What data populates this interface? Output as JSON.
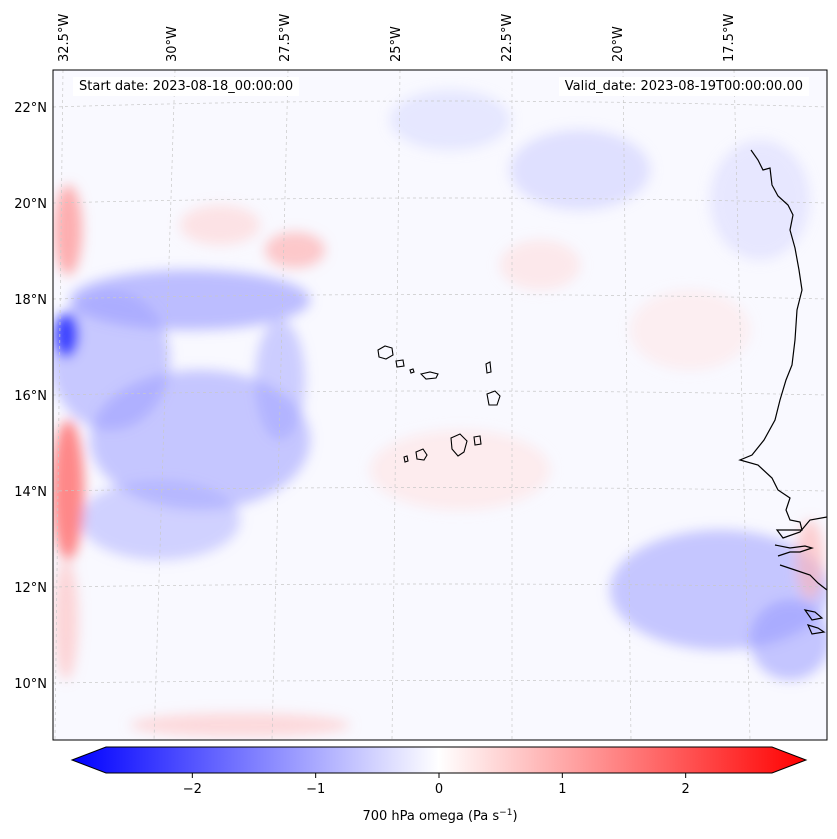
{
  "map": {
    "start_date": "Start date: 2023-08-18_00:00:00",
    "valid_date": "Valid_date: 2023-08-19T00:00:00.00",
    "longitude_labels": [
      "32.5°W",
      "30°W",
      "27.5°W",
      "25°W",
      "22.5°W",
      "20°W",
      "17.5°W"
    ],
    "latitude_labels": [
      "22°N",
      "20°N",
      "18°N",
      "16°N",
      "14°N",
      "12°N",
      "10°N"
    ],
    "colorbar": {
      "label_prefix": "700 hPa omega (Pa s",
      "label_exponent": "−1",
      "label_suffix": ")",
      "tick_labels": [
        "−2",
        "−1",
        "0",
        "1",
        "2"
      ],
      "range": [
        -2.7,
        2.7
      ],
      "tick_values": [
        -2,
        -1,
        0,
        1,
        2
      ],
      "negative_color": "#0000ff",
      "positive_color": "#ff0000",
      "neutral_color": "#ffffff"
    }
  }
}
